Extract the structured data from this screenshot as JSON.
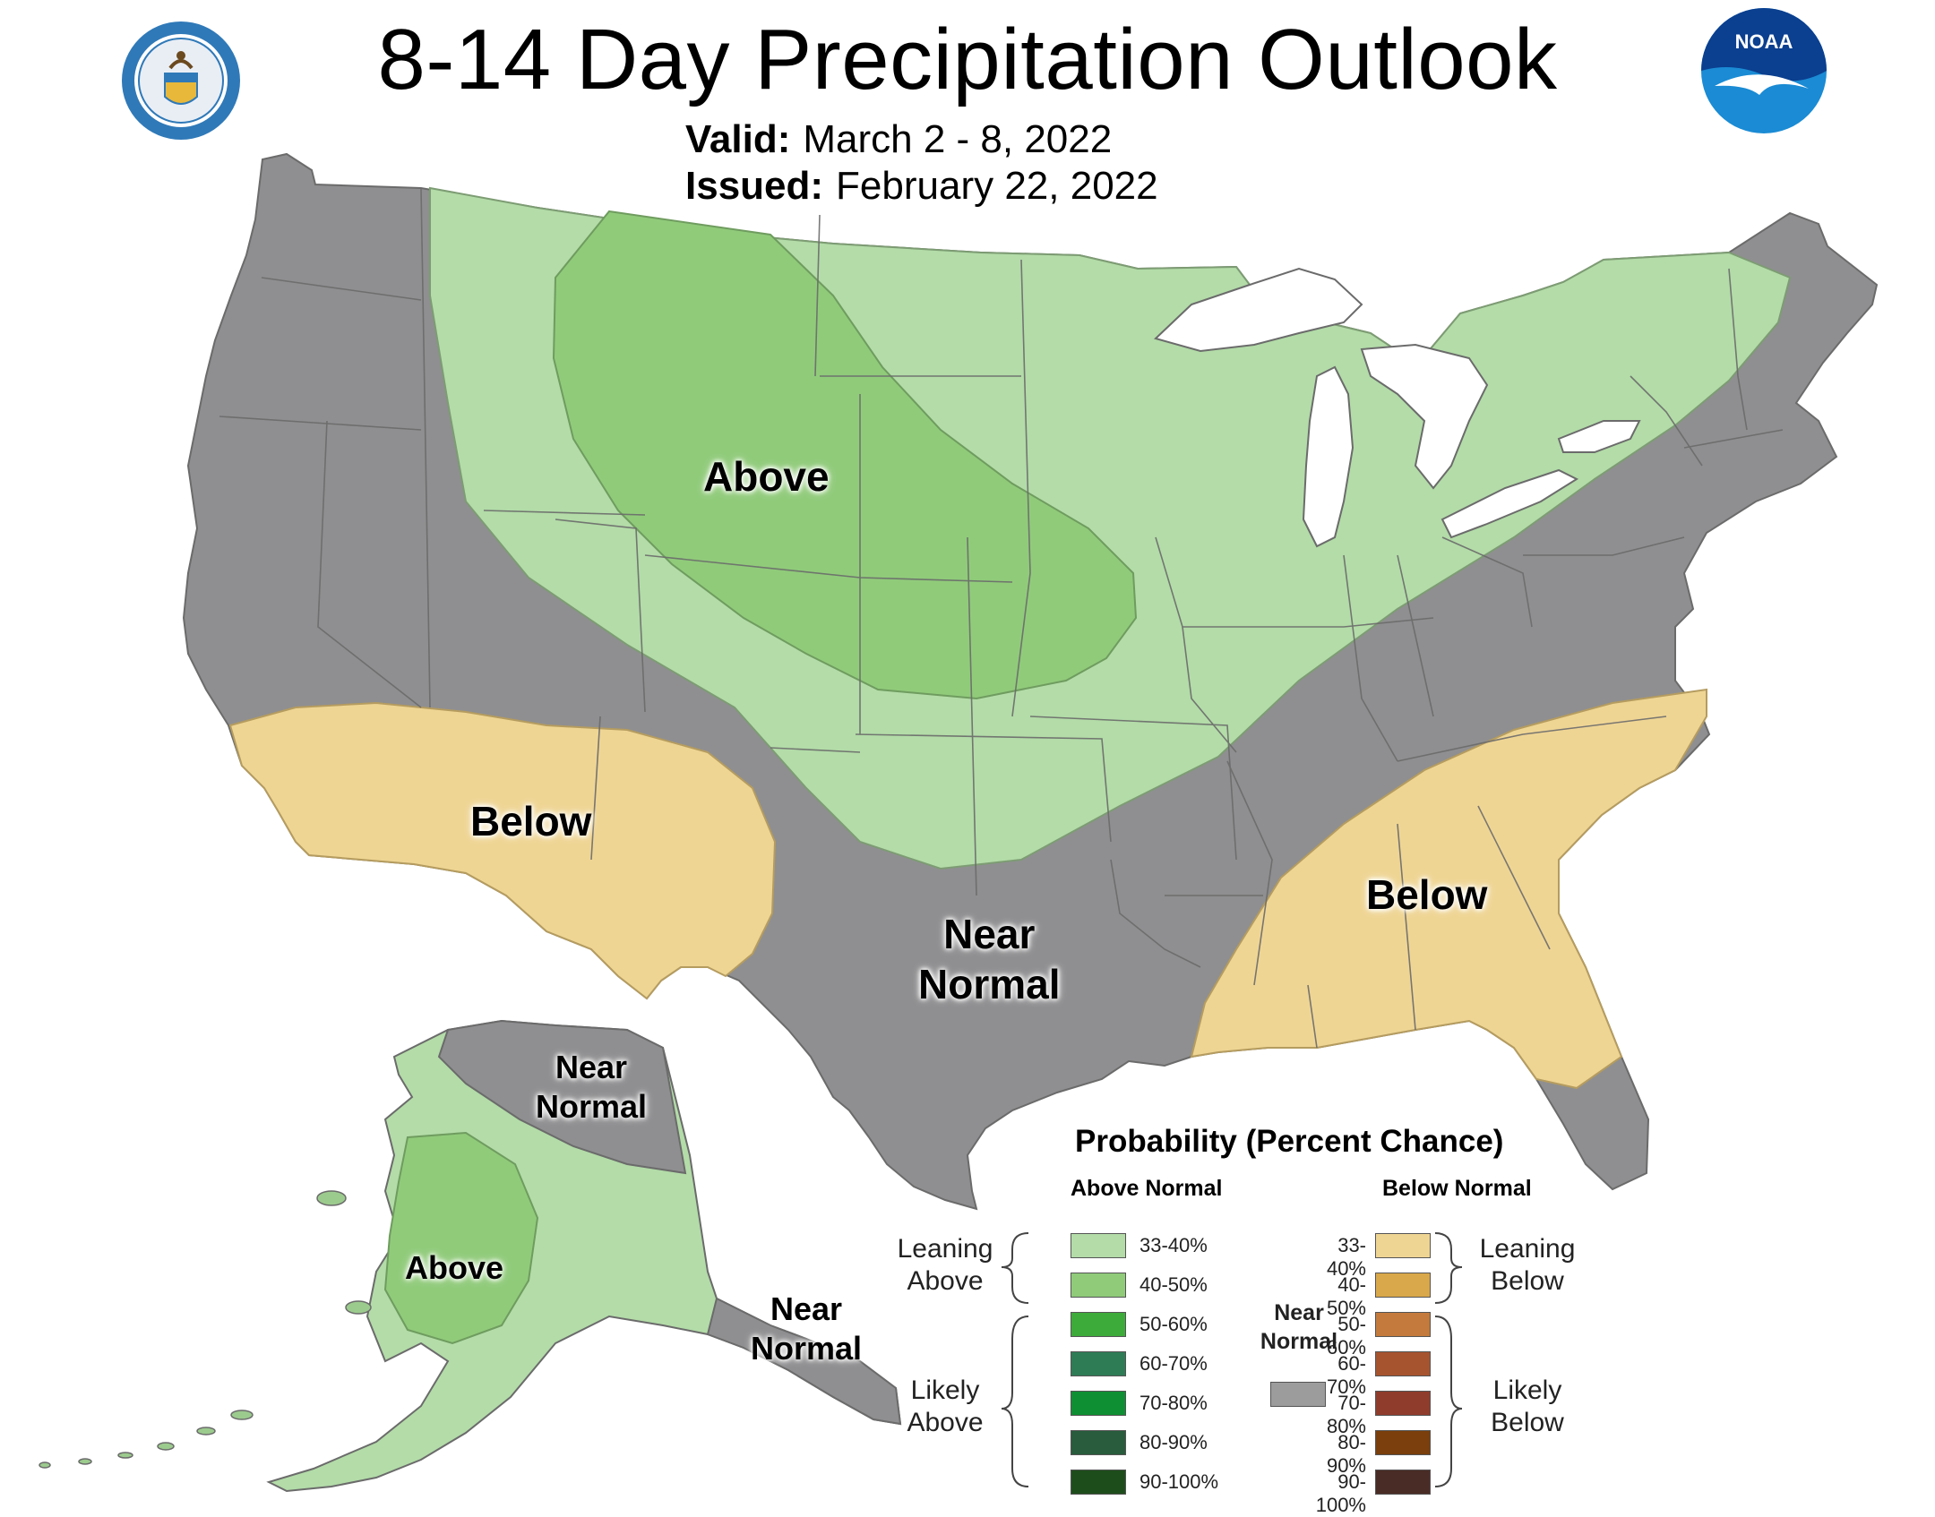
{
  "header": {
    "title": "8-14 Day Precipitation Outlook",
    "valid_label": "Valid:",
    "valid_value": "March 2 - 8, 2022",
    "issued_label": "Issued:",
    "issued_value": "February 22, 2022"
  },
  "logos": {
    "left": "department-of-commerce-seal-icon",
    "right": "noaa-logo-icon",
    "noaa_text": "NOAA"
  },
  "map": {
    "labels": {
      "above_main": "Above",
      "below_southwest": "Below",
      "below_southeast": "Below",
      "near_normal_south_line1": "Near",
      "near_normal_south_line2": "Normal",
      "alaska_near_normal_north_line1": "Near",
      "alaska_near_normal_north_line2": "Normal",
      "alaska_above": "Above",
      "alaska_near_normal_panhandle_line1": "Near",
      "alaska_near_normal_panhandle_line2": "Normal"
    },
    "colors": {
      "near_normal": "#8f8f91",
      "above_33_40": "#b3dca8",
      "above_40_50": "#90cb7a",
      "below_33_40": "#efd594",
      "lakes": "#ffffff",
      "borders": "#6b6b6b"
    }
  },
  "legend": {
    "title": "Probability (Percent Chance)",
    "above_heading": "Above Normal",
    "below_heading": "Below Normal",
    "leaning_above_line1": "Leaning",
    "leaning_above_line2": "Above",
    "likely_above_line1": "Likely",
    "likely_above_line2": "Above",
    "leaning_below_line1": "Leaning",
    "leaning_below_line2": "Below",
    "likely_below_line1": "Likely",
    "likely_below_line2": "Below",
    "near_normal_line1": "Near",
    "near_normal_line2": "Normal",
    "near_normal_color": "#9c9c9c",
    "above": [
      {
        "label": "33-40%",
        "color": "#b3dca8"
      },
      {
        "label": "40-50%",
        "color": "#90cb7a"
      },
      {
        "label": "50-60%",
        "color": "#3dab3a"
      },
      {
        "label": "60-70%",
        "color": "#2e7c56"
      },
      {
        "label": "70-80%",
        "color": "#0f8f33"
      },
      {
        "label": "80-90%",
        "color": "#285c3c"
      },
      {
        "label": "90-100%",
        "color": "#1e4d1c"
      }
    ],
    "below": [
      {
        "label": "33-40%",
        "color": "#efd594"
      },
      {
        "label": "40-50%",
        "color": "#d9a84a"
      },
      {
        "label": "50-60%",
        "color": "#c47a3c"
      },
      {
        "label": "60-70%",
        "color": "#a6542f"
      },
      {
        "label": "70-80%",
        "color": "#903c2c"
      },
      {
        "label": "80-90%",
        "color": "#7a3f0c"
      },
      {
        "label": "90-100%",
        "color": "#4a2c26"
      }
    ]
  }
}
